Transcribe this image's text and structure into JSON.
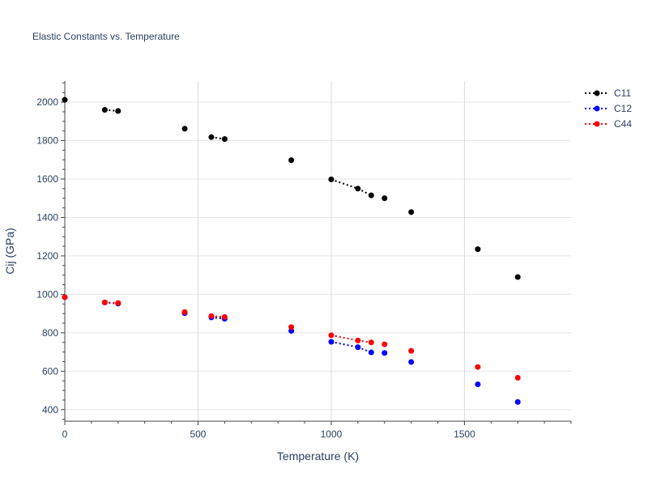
{
  "chart_data": {
    "type": "scatter",
    "title": "Elastic Constants vs. Temperature",
    "xlabel": "Temperature (K)",
    "ylabel": "Cij (GPa)",
    "xlim": [
      0,
      1900
    ],
    "ylim": [
      340,
      2110
    ],
    "xticks": [
      0,
      500,
      1000,
      1500
    ],
    "yticks": [
      400,
      600,
      800,
      1000,
      1200,
      1400,
      1600,
      1800,
      2000
    ],
    "grid": true,
    "legend_position": "top-right",
    "series": [
      {
        "name": "C11",
        "color": "#000000",
        "points": [
          [
            0,
            2012
          ],
          [
            150,
            1960
          ],
          [
            200,
            1954
          ],
          [
            450,
            1862
          ],
          [
            550,
            1818
          ],
          [
            600,
            1808
          ],
          [
            850,
            1698
          ],
          [
            1000,
            1598
          ],
          [
            1100,
            1550
          ],
          [
            1150,
            1515
          ],
          [
            1200,
            1500
          ],
          [
            1300,
            1428
          ],
          [
            1550,
            1235
          ],
          [
            1700,
            1090
          ]
        ],
        "dotted_segments": [
          [
            1,
            2
          ],
          [
            4,
            5
          ],
          [
            7,
            8
          ],
          [
            8,
            9
          ]
        ]
      },
      {
        "name": "C12",
        "color": "#0000ff",
        "points": [
          [
            0,
            985
          ],
          [
            150,
            958
          ],
          [
            200,
            952
          ],
          [
            450,
            902
          ],
          [
            550,
            880
          ],
          [
            600,
            873
          ],
          [
            850,
            810
          ],
          [
            1000,
            753
          ],
          [
            1100,
            725
          ],
          [
            1150,
            698
          ],
          [
            1200,
            695
          ],
          [
            1300,
            648
          ],
          [
            1550,
            532
          ],
          [
            1700,
            440
          ]
        ],
        "dotted_segments": [
          [
            1,
            2
          ],
          [
            4,
            5
          ],
          [
            7,
            8
          ],
          [
            8,
            9
          ]
        ]
      },
      {
        "name": "C44",
        "color": "#ff0000",
        "points": [
          [
            0,
            985
          ],
          [
            150,
            958
          ],
          [
            200,
            955
          ],
          [
            450,
            908
          ],
          [
            550,
            887
          ],
          [
            600,
            882
          ],
          [
            850,
            830
          ],
          [
            1000,
            787
          ],
          [
            1100,
            760
          ],
          [
            1150,
            750
          ],
          [
            1200,
            740
          ],
          [
            1300,
            706
          ],
          [
            1550,
            622
          ],
          [
            1700,
            566
          ]
        ],
        "dotted_segments": [
          [
            1,
            2
          ],
          [
            4,
            5
          ],
          [
            7,
            8
          ],
          [
            8,
            9
          ]
        ]
      }
    ]
  }
}
